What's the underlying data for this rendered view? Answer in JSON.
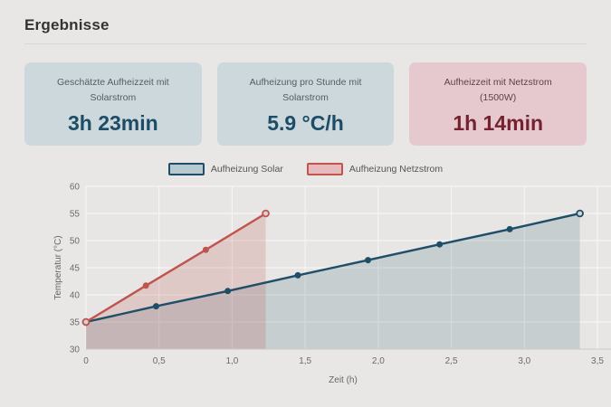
{
  "page": {
    "title": "Ergebnisse"
  },
  "cards": [
    {
      "label_line1": "Geschätzte Aufheizzeit mit",
      "label_line2": "Solarstrom",
      "value": "3h 23min",
      "variant": "blue"
    },
    {
      "label_line1": "Aufheizung pro Stunde mit",
      "label_line2": "Solarstrom",
      "value": "5.9 °C/h",
      "variant": "blue"
    },
    {
      "label_line1": "Aufheizzeit mit Netzstrom",
      "label_line2": "(1500W)",
      "value": "1h 14min",
      "variant": "red"
    }
  ],
  "colors": {
    "accent_blue": "#1c4c66",
    "accent_red": "#75222f",
    "card_blue_bg": "#cdd8dc",
    "card_red_bg": "#e6c9ce",
    "page_bg": "#e9e7e5"
  },
  "chart_data": {
    "type": "line",
    "title": "",
    "xlabel": "Zeit (h)",
    "ylabel": "Temperatur (°C)",
    "xlim": [
      0,
      3.5
    ],
    "ylim": [
      30,
      60
    ],
    "grid": true,
    "legend_position": "top",
    "xticks": {
      "values": [
        0,
        0.5,
        1,
        1.5,
        2,
        2.5,
        3,
        3.5
      ],
      "labels": [
        "0",
        "0,5",
        "1,0",
        "1,5",
        "2,0",
        "2,5",
        "3,0",
        "3,5"
      ]
    },
    "yticks": [
      30,
      35,
      40,
      45,
      50,
      55,
      60
    ],
    "series": [
      {
        "name": "Aufheizung Solar",
        "color": "#1f4e68",
        "fill": "rgba(31,78,104,0.16)",
        "swatch_fill": "#b9c9d2",
        "x": [
          0,
          0.48,
          0.97,
          1.45,
          1.93,
          2.42,
          2.9,
          3.38
        ],
        "y": [
          35,
          37.9,
          40.7,
          43.6,
          46.4,
          49.3,
          52.1,
          55
        ]
      },
      {
        "name": "Aufheizung Netzstrom",
        "color": "#c0544f",
        "fill": "rgba(192,84,79,0.20)",
        "swatch_fill": "#e8babd",
        "x": [
          0,
          0.41,
          0.82,
          1.23
        ],
        "y": [
          35,
          41.7,
          48.3,
          55
        ]
      }
    ]
  }
}
